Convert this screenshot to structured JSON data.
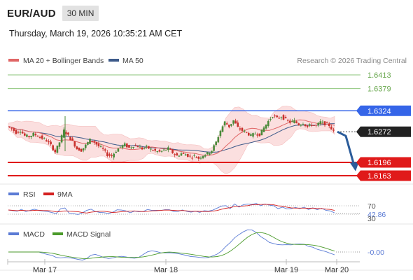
{
  "header": {
    "symbol": "EUR/AUD",
    "timeframe": "30 MIN",
    "timestamp": "Thursday, March 19, 2026 10:35:21 AM CET"
  },
  "legend": {
    "ma20_label": "MA 20 + Bollinger Bands",
    "ma50_label": "MA 50",
    "credit": "Research © 2026 Trading Central"
  },
  "rsi_legend": {
    "rsi_label": "RSI",
    "ma9_label": "9MA"
  },
  "macd_legend": {
    "macd_label": "MACD",
    "signal_label": "MACD Signal"
  },
  "colors": {
    "resistance": "#3565e8",
    "support": "#e01a1a",
    "target": "#6aa84f",
    "current": "#222222",
    "ma20": "#e06666",
    "ma50": "#3d5a8a",
    "band_fill": "#fbdcdc",
    "arrow": "#2b5c9a",
    "candle_up": "#4a8a3a",
    "candle_down": "#c9302c",
    "rsi": "#5b7bd5",
    "rsi_ma": "#d42020",
    "macd": "#5b7bd5",
    "macd_signal": "#4a9a2a"
  },
  "chart_data": {
    "type": "candlestick",
    "ylim": [
      1.615,
      1.6425
    ],
    "xlabels": [
      "Mar 17",
      "Mar 18",
      "Mar 19",
      "Mar 20"
    ],
    "levels": [
      {
        "value": 1.6413,
        "label": "1.6413",
        "kind": "target"
      },
      {
        "value": 1.6379,
        "label": "1.6379",
        "kind": "target"
      },
      {
        "value": 1.6324,
        "label": "1.6324",
        "kind": "resistance"
      },
      {
        "value": 1.6272,
        "label": "1.6272",
        "kind": "current"
      },
      {
        "value": 1.6196,
        "label": "1.6196",
        "kind": "support"
      },
      {
        "value": 1.6163,
        "label": "1.6163",
        "kind": "support"
      }
    ],
    "price_path": [
      1.6285,
      1.628,
      1.627,
      1.6275,
      1.6262,
      1.626,
      1.6266,
      1.6262,
      1.6256,
      1.625,
      1.6238,
      1.6222,
      1.6246,
      1.6275,
      1.6262,
      1.6248,
      1.623,
      1.6226,
      1.6238,
      1.6252,
      1.6246,
      1.6236,
      1.6228,
      1.6215,
      1.6212,
      1.6225,
      1.6235,
      1.624,
      1.6232,
      1.6238,
      1.6236,
      1.623,
      1.6234,
      1.6228,
      1.6224,
      1.6222,
      1.6226,
      1.623,
      1.622,
      1.6212,
      1.6218,
      1.6216,
      1.621,
      1.6212,
      1.6206,
      1.6214,
      1.6218,
      1.6226,
      1.6246,
      1.6275,
      1.6296,
      1.6285,
      1.63,
      1.6282,
      1.6275,
      1.627,
      1.6262,
      1.6268,
      1.6265,
      1.6282,
      1.6298,
      1.6312,
      1.6305,
      1.631,
      1.6302,
      1.6296,
      1.6298,
      1.629,
      1.6294,
      1.6284,
      1.629,
      1.6286,
      1.6296,
      1.6292,
      1.6288,
      1.6272
    ],
    "projection": {
      "from_value": 1.6272,
      "to_value": 1.6174
    },
    "rsi": {
      "value_label": "42.86",
      "level_label": "70",
      "lower_label": "30"
    },
    "macd": {
      "value_label": "-0.00"
    }
  }
}
